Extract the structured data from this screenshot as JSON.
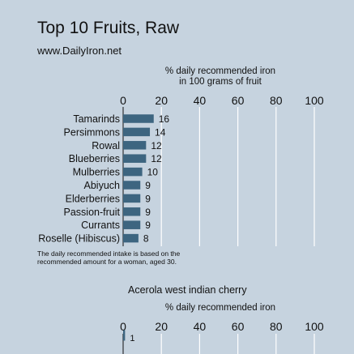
{
  "title": "Top 10 Fruits, Raw",
  "source": "www.DailyIron.net",
  "note": {
    "line1": "The daily recommended intake is based on the",
    "line2": "recommended amount for a woman, aged 30."
  },
  "chart_data": [
    {
      "type": "bar",
      "orientation": "horizontal",
      "title": "Top 10 Fruits, Raw",
      "xlabel_line1": "% daily recommended iron",
      "xlabel_line2": "in 100 grams of fruit",
      "xlim": [
        0,
        100
      ],
      "xticks": [
        "0",
        "20",
        "40",
        "60",
        "80",
        "100"
      ],
      "grid": true,
      "categories": [
        "Tamarinds",
        "Persimmons",
        "Rowal",
        "Blueberries",
        "Mulberries",
        "Abiyuch",
        "Elderberries",
        "Passion-fruit",
        "Currants",
        "Roselle (Hibiscus)"
      ],
      "values": [
        16,
        14,
        12,
        12,
        10,
        9,
        9,
        9,
        9,
        8
      ],
      "data_labels": [
        "16",
        "14",
        "12",
        "12",
        "10",
        "9",
        "9",
        "9",
        "9",
        "8"
      ],
      "bar_color": "#3d6580"
    },
    {
      "type": "bar",
      "orientation": "horizontal",
      "title": "Acerola west indian cherry",
      "xlabel_line1": "% daily recommended iron",
      "xlim": [
        0,
        100
      ],
      "xticks": [
        "0",
        "20",
        "40",
        "60",
        "80",
        "100"
      ],
      "grid": true,
      "categories": [
        ""
      ],
      "values": [
        1
      ],
      "data_labels": [
        "1"
      ],
      "bar_color": "#3d6580"
    }
  ]
}
